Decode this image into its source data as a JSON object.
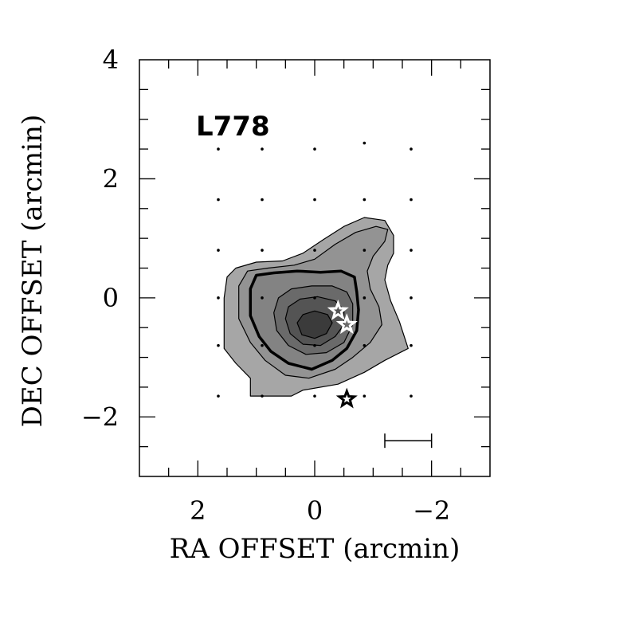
{
  "chart_data": {
    "type": "contour",
    "title": "L778",
    "xlabel": "RA OFFSET (arcmin)",
    "ylabel": "DEC OFFSET (arcmin)",
    "xlim": [
      3,
      -3
    ],
    "ylim": [
      -3,
      4
    ],
    "x_reversed": true,
    "x_major_ticks": [
      2,
      0,
      -2
    ],
    "x_tick_labels": [
      "2",
      "0",
      "−2"
    ],
    "y_major_ticks": [
      4,
      2,
      0,
      -2
    ],
    "y_tick_labels": [
      "4",
      "2",
      "0",
      "−2"
    ],
    "minor_tick_step": 0.5,
    "grid": false,
    "sample_points": [
      [
        1.65,
        2.5
      ],
      [
        0.9,
        2.5
      ],
      [
        0.0,
        2.5
      ],
      [
        -0.85,
        2.6
      ],
      [
        -1.65,
        2.5
      ],
      [
        1.65,
        1.65
      ],
      [
        0.9,
        1.65
      ],
      [
        0.0,
        1.65
      ],
      [
        -0.85,
        1.65
      ],
      [
        -1.65,
        1.65
      ],
      [
        1.65,
        0.8
      ],
      [
        0.9,
        0.8
      ],
      [
        0.0,
        0.8
      ],
      [
        -0.85,
        0.8
      ],
      [
        -1.65,
        0.8
      ],
      [
        1.65,
        0.0
      ],
      [
        0.9,
        0.0
      ],
      [
        0.0,
        0.0
      ],
      [
        -0.85,
        0.0
      ],
      [
        -1.65,
        0.0
      ],
      [
        1.65,
        -0.8
      ],
      [
        0.9,
        -0.8
      ],
      [
        0.0,
        -0.8
      ],
      [
        -0.85,
        -0.8
      ],
      [
        -1.65,
        -0.8
      ],
      [
        1.65,
        -1.65
      ],
      [
        0.9,
        -1.65
      ],
      [
        0.0,
        -1.65
      ],
      [
        -0.85,
        -1.65
      ],
      [
        -1.65,
        -1.65
      ]
    ],
    "contours": [
      {
        "level": 1,
        "fill": "#a6a6a6",
        "stroke_width": 1.2,
        "points": [
          [
            1.55,
            -0.45
          ],
          [
            1.55,
            -0.85
          ],
          [
            1.35,
            -1.1
          ],
          [
            1.1,
            -1.35
          ],
          [
            1.1,
            -1.65
          ],
          [
            0.4,
            -1.65
          ],
          [
            0.2,
            -1.55
          ],
          [
            -0.4,
            -1.45
          ],
          [
            -0.85,
            -1.25
          ],
          [
            -1.2,
            -1.05
          ],
          [
            -1.6,
            -0.85
          ],
          [
            -1.45,
            -0.4
          ],
          [
            -1.3,
            -0.05
          ],
          [
            -1.2,
            0.3
          ],
          [
            -1.25,
            0.55
          ],
          [
            -1.35,
            0.75
          ],
          [
            -1.35,
            1.05
          ],
          [
            -1.2,
            1.3
          ],
          [
            -0.85,
            1.35
          ],
          [
            -0.5,
            1.2
          ],
          [
            -0.15,
            0.98
          ],
          [
            0.2,
            0.75
          ],
          [
            0.55,
            0.62
          ],
          [
            1.0,
            0.6
          ],
          [
            1.35,
            0.5
          ],
          [
            1.5,
            0.35
          ],
          [
            1.55,
            0.0
          ],
          [
            1.55,
            -0.45
          ]
        ]
      },
      {
        "level": 2,
        "fill": "#939393",
        "stroke_width": 1.2,
        "points": [
          [
            1.3,
            0.2
          ],
          [
            1.3,
            -0.35
          ],
          [
            1.1,
            -0.75
          ],
          [
            0.85,
            -1.05
          ],
          [
            0.5,
            -1.3
          ],
          [
            0.1,
            -1.35
          ],
          [
            -0.35,
            -1.2
          ],
          [
            -0.65,
            -1.0
          ],
          [
            -0.95,
            -0.75
          ],
          [
            -1.15,
            -0.45
          ],
          [
            -1.1,
            -0.15
          ],
          [
            -0.95,
            0.15
          ],
          [
            -0.9,
            0.45
          ],
          [
            -1.0,
            0.7
          ],
          [
            -1.2,
            0.95
          ],
          [
            -1.25,
            1.15
          ],
          [
            -1.05,
            1.2
          ],
          [
            -0.7,
            1.1
          ],
          [
            -0.35,
            0.9
          ],
          [
            0.0,
            0.65
          ],
          [
            0.35,
            0.55
          ],
          [
            0.8,
            0.5
          ],
          [
            1.15,
            0.45
          ],
          [
            1.3,
            0.2
          ]
        ]
      },
      {
        "level": 3,
        "fill": "#838383",
        "stroke_width": 3.5,
        "points": [
          [
            1.1,
            0.15
          ],
          [
            1.1,
            -0.3
          ],
          [
            0.95,
            -0.65
          ],
          [
            0.75,
            -0.9
          ],
          [
            0.45,
            -1.1
          ],
          [
            0.05,
            -1.2
          ],
          [
            -0.3,
            -1.05
          ],
          [
            -0.55,
            -0.85
          ],
          [
            -0.72,
            -0.55
          ],
          [
            -0.75,
            -0.2
          ],
          [
            -0.72,
            0.1
          ],
          [
            -0.68,
            0.35
          ],
          [
            -0.45,
            0.45
          ],
          [
            -0.1,
            0.43
          ],
          [
            0.3,
            0.45
          ],
          [
            0.7,
            0.42
          ],
          [
            1.0,
            0.38
          ],
          [
            1.1,
            0.15
          ]
        ]
      },
      {
        "level": 4,
        "fill": "#6a6a6a",
        "stroke_width": 1.2,
        "points": [
          [
            0.7,
            -0.25
          ],
          [
            0.65,
            -0.55
          ],
          [
            0.45,
            -0.8
          ],
          [
            0.15,
            -0.95
          ],
          [
            -0.2,
            -0.92
          ],
          [
            -0.5,
            -0.75
          ],
          [
            -0.65,
            -0.45
          ],
          [
            -0.65,
            -0.1
          ],
          [
            -0.55,
            0.1
          ],
          [
            -0.3,
            0.2
          ],
          [
            0.05,
            0.2
          ],
          [
            0.4,
            0.15
          ],
          [
            0.62,
            0.0
          ],
          [
            0.7,
            -0.25
          ]
        ]
      },
      {
        "level": 5,
        "fill": "#545454",
        "stroke_width": 1.2,
        "points": [
          [
            0.5,
            -0.35
          ],
          [
            0.42,
            -0.6
          ],
          [
            0.2,
            -0.78
          ],
          [
            -0.1,
            -0.8
          ],
          [
            -0.35,
            -0.65
          ],
          [
            -0.5,
            -0.45
          ],
          [
            -0.5,
            -0.2
          ],
          [
            -0.35,
            -0.05
          ],
          [
            -0.05,
            0.02
          ],
          [
            0.25,
            -0.02
          ],
          [
            0.45,
            -0.15
          ],
          [
            0.5,
            -0.35
          ]
        ]
      },
      {
        "level": 6,
        "fill": "#3b3b3b",
        "stroke_width": 1.2,
        "points": [
          [
            0.3,
            -0.42
          ],
          [
            0.22,
            -0.62
          ],
          [
            0.0,
            -0.68
          ],
          [
            -0.2,
            -0.6
          ],
          [
            -0.3,
            -0.42
          ],
          [
            -0.22,
            -0.28
          ],
          [
            0.0,
            -0.22
          ],
          [
            0.2,
            -0.28
          ],
          [
            0.3,
            -0.42
          ]
        ]
      }
    ],
    "sources": [
      {
        "x": -0.4,
        "y": -0.22,
        "style": "white-star"
      },
      {
        "x": -0.55,
        "y": -0.45,
        "style": "white-star"
      },
      {
        "x": -0.55,
        "y": -1.7,
        "style": "black-star"
      }
    ],
    "scale_bar": {
      "x_start": -1.2,
      "x_end": -2.0,
      "y": -2.4
    }
  }
}
